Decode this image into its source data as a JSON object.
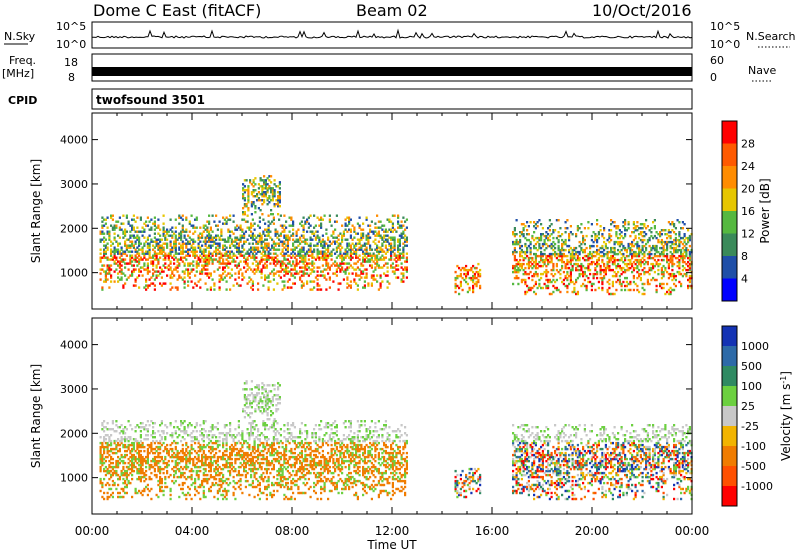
{
  "header": {
    "station": "Dome C East (fitACF)",
    "beam": "Beam 02",
    "date": "10/Oct/2016"
  },
  "noise_panel": {
    "left_label": "N.Sky",
    "right_label": "N.Search",
    "left_ticks": [
      "10^5",
      "10^0"
    ],
    "right_ticks": [
      "10^5",
      "10^0"
    ]
  },
  "freq_panel": {
    "left_label_line1": "Freq.",
    "left_label_line2": "[MHz]",
    "left_value": "8",
    "left_top_value": "18",
    "right_ticks": [
      "60",
      "0"
    ],
    "right_label": "Nave"
  },
  "cpid_panel": {
    "label": "CPID",
    "value": "twofsound 3501"
  },
  "colors": {
    "power": [
      "#0000ff",
      "#1f4fa8",
      "#3a8a5a",
      "#55b840",
      "#e6c600",
      "#ff8c00",
      "#ff5a00",
      "#ff0000"
    ],
    "velocity": [
      "#1433b4",
      "#2d6aa8",
      "#2f8a62",
      "#6cd040",
      "#c8c8c8",
      "#f2b400",
      "#f07c00",
      "#ff5000",
      "#ff0000"
    ]
  },
  "chart_data": [
    {
      "type": "heatmap",
      "quantity": "power",
      "ylabel": "Slant Range [km]",
      "ylim": [
        180,
        4600
      ],
      "yticks": [
        1000,
        2000,
        3000,
        4000
      ],
      "xlim": [
        0,
        24
      ],
      "colorbar": {
        "label": "Power [dB]",
        "ticks": [
          "4",
          "8",
          "12",
          "16",
          "20",
          "24",
          "28"
        ],
        "range": [
          0,
          32
        ]
      },
      "echo_regions": [
        {
          "t_start": 0.3,
          "t_end": 12.6,
          "r_min": 600,
          "r_max": 2300
        },
        {
          "t_start": 6.0,
          "t_end": 7.5,
          "r_min": 2300,
          "r_max": 3200
        },
        {
          "t_start": 14.5,
          "t_end": 15.5,
          "r_min": 500,
          "r_max": 1200
        },
        {
          "t_start": 16.8,
          "t_end": 24.0,
          "r_min": 500,
          "r_max": 2200
        }
      ]
    },
    {
      "type": "heatmap",
      "quantity": "velocity",
      "ylabel": "Slant Range [km]",
      "ylim": [
        180,
        4600
      ],
      "yticks": [
        1000,
        2000,
        3000,
        4000
      ],
      "xlim": [
        0,
        24
      ],
      "xticks": [
        "00:00",
        "04:00",
        "08:00",
        "12:00",
        "16:00",
        "20:00",
        "00:00"
      ],
      "xlabel": "Time UT",
      "colorbar": {
        "label": "Velocity [m s^-1]",
        "ticks": [
          "1000",
          "500",
          "100",
          "25",
          "-25",
          "-100",
          "-500",
          "-1000"
        ]
      },
      "echo_regions": [
        {
          "t_start": 0.3,
          "t_end": 12.6,
          "r_min": 500,
          "r_max": 2300
        },
        {
          "t_start": 6.0,
          "t_end": 7.5,
          "r_min": 2300,
          "r_max": 3200
        },
        {
          "t_start": 14.5,
          "t_end": 15.5,
          "r_min": 500,
          "r_max": 1200
        },
        {
          "t_start": 16.8,
          "t_end": 24.0,
          "r_min": 500,
          "r_max": 2200
        }
      ]
    }
  ]
}
